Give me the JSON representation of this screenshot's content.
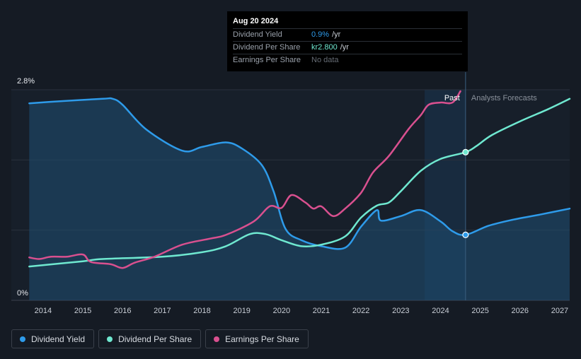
{
  "tooltip": {
    "date": "Aug 20 2024",
    "rows": [
      {
        "label": "Dividend Yield",
        "value": "0.9%",
        "unit": "/yr"
      },
      {
        "label": "Dividend Per Share",
        "value": "kr2.800",
        "unit": "/yr"
      },
      {
        "label": "Earnings Per Share",
        "value": "No data",
        "unit": ""
      }
    ]
  },
  "legend": [
    {
      "label": "Dividend Yield",
      "color": "#2e9bea"
    },
    {
      "label": "Dividend Per Share",
      "color": "#6fe8d0"
    },
    {
      "label": "Earnings Per Share",
      "color": "#d9508f"
    }
  ],
  "chart_data": {
    "type": "line",
    "x_ticks": [
      "2014",
      "2015",
      "2016",
      "2017",
      "2018",
      "2019",
      "2020",
      "2021",
      "2022",
      "2023",
      "2024",
      "2025",
      "2026",
      "2027"
    ],
    "y_labels": {
      "top": "2.8%",
      "bottom": "0%"
    },
    "ylim": [
      0,
      2.8
    ],
    "xlim": [
      2013.2,
      2027.25
    ],
    "past_label": "Past",
    "forecast_label": "Analysts Forecasts",
    "past_end": 2024.63,
    "highlight_start": 2023.6,
    "grid": true,
    "series": [
      {
        "name": "Dividend Yield",
        "color": "#2e9bea",
        "fill": true,
        "points": [
          [
            2013.65,
            2.62
          ],
          [
            2014.5,
            2.65
          ],
          [
            2015.5,
            2.68
          ],
          [
            2015.75,
            2.68
          ],
          [
            2016.0,
            2.6
          ],
          [
            2016.6,
            2.27
          ],
          [
            2017.5,
            1.99
          ],
          [
            2018.0,
            2.04
          ],
          [
            2018.6,
            2.1
          ],
          [
            2019.0,
            2.02
          ],
          [
            2019.5,
            1.8
          ],
          [
            2019.8,
            1.45
          ],
          [
            2020.1,
            0.95
          ],
          [
            2020.5,
            0.8
          ],
          [
            2021.0,
            0.72
          ],
          [
            2021.6,
            0.7
          ],
          [
            2022.0,
            0.98
          ],
          [
            2022.4,
            1.2
          ],
          [
            2022.5,
            1.06
          ],
          [
            2023.0,
            1.12
          ],
          [
            2023.5,
            1.2
          ],
          [
            2024.0,
            1.05
          ],
          [
            2024.3,
            0.92
          ],
          [
            2024.63,
            0.87
          ],
          [
            2025.2,
            0.99
          ],
          [
            2025.8,
            1.07
          ],
          [
            2026.5,
            1.14
          ],
          [
            2027.25,
            1.22
          ]
        ],
        "marker_x": 2024.63
      },
      {
        "name": "Dividend Per Share",
        "color": "#6fe8d0",
        "fill": false,
        "points": [
          [
            2013.65,
            0.45
          ],
          [
            2015.0,
            0.52
          ],
          [
            2015.5,
            0.55
          ],
          [
            2017.0,
            0.58
          ],
          [
            2018.0,
            0.64
          ],
          [
            2018.6,
            0.72
          ],
          [
            2019.2,
            0.88
          ],
          [
            2019.6,
            0.88
          ],
          [
            2020.0,
            0.8
          ],
          [
            2020.5,
            0.72
          ],
          [
            2021.0,
            0.74
          ],
          [
            2021.6,
            0.85
          ],
          [
            2022.0,
            1.1
          ],
          [
            2022.4,
            1.26
          ],
          [
            2022.7,
            1.3
          ],
          [
            2023.0,
            1.45
          ],
          [
            2023.5,
            1.72
          ],
          [
            2024.0,
            1.88
          ],
          [
            2024.63,
            1.97
          ],
          [
            2024.9,
            2.05
          ],
          [
            2025.3,
            2.2
          ],
          [
            2026.0,
            2.38
          ],
          [
            2026.7,
            2.54
          ],
          [
            2027.25,
            2.68
          ]
        ],
        "marker_x": 2024.63
      },
      {
        "name": "Earnings Per Share",
        "color": "#d9508f",
        "fill": false,
        "points": [
          [
            2013.65,
            0.57
          ],
          [
            2013.9,
            0.55
          ],
          [
            2014.2,
            0.58
          ],
          [
            2014.6,
            0.58
          ],
          [
            2015.0,
            0.61
          ],
          [
            2015.2,
            0.51
          ],
          [
            2015.7,
            0.48
          ],
          [
            2016.0,
            0.43
          ],
          [
            2016.3,
            0.5
          ],
          [
            2016.8,
            0.58
          ],
          [
            2017.5,
            0.74
          ],
          [
            2018.2,
            0.82
          ],
          [
            2018.6,
            0.87
          ],
          [
            2019.3,
            1.05
          ],
          [
            2019.7,
            1.25
          ],
          [
            2020.0,
            1.23
          ],
          [
            2020.25,
            1.4
          ],
          [
            2020.6,
            1.3
          ],
          [
            2020.8,
            1.22
          ],
          [
            2021.0,
            1.25
          ],
          [
            2021.3,
            1.12
          ],
          [
            2021.6,
            1.22
          ],
          [
            2022.0,
            1.43
          ],
          [
            2022.3,
            1.7
          ],
          [
            2022.7,
            1.92
          ],
          [
            2023.2,
            2.28
          ],
          [
            2023.5,
            2.46
          ],
          [
            2023.7,
            2.6
          ],
          [
            2024.0,
            2.63
          ],
          [
            2024.3,
            2.63
          ],
          [
            2024.5,
            2.78
          ]
        ]
      }
    ]
  }
}
